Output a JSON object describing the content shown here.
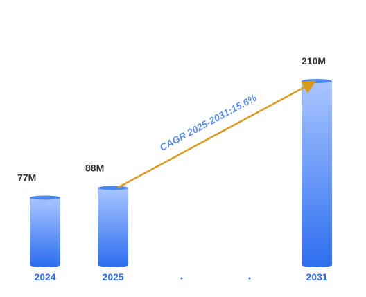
{
  "chart_data": {
    "type": "bar",
    "categories": [
      "2024",
      "2025",
      "",
      "",
      "2031"
    ],
    "values": [
      77,
      88,
      null,
      null,
      210
    ],
    "value_labels": [
      "77M",
      "88M",
      "",
      "",
      "210M"
    ],
    "annotation": "CAGR 2025-2031:15.6%",
    "ylim": [
      0,
      210
    ],
    "grid": false,
    "legend": "none"
  },
  "colors": {
    "bar_top": "#a9c5ff",
    "bar_bottom": "#2f6ff0",
    "bar_cap": "#4a86f2",
    "category_text": "#2f6ff0",
    "value_text": "#333333",
    "arrow": "#d99a1e",
    "annotation_text": "#5b8fe8",
    "placeholder_dot": "#2f6ff0"
  }
}
